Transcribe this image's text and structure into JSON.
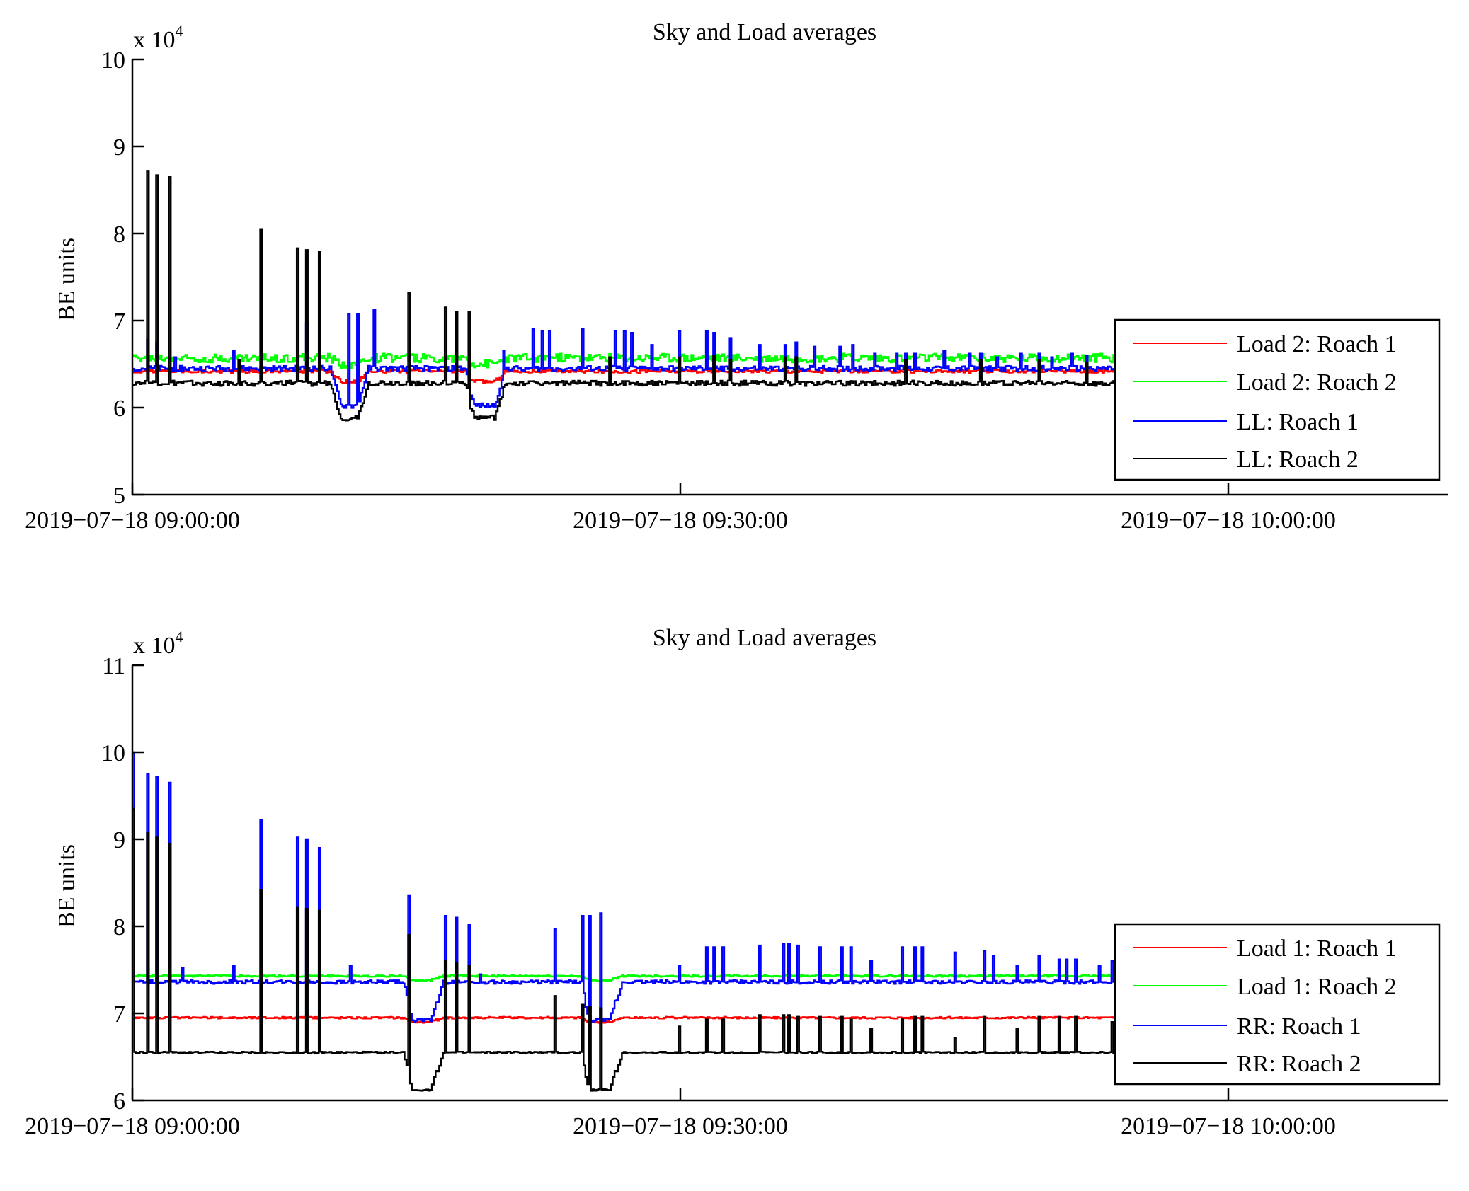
{
  "chart_data": [
    {
      "type": "line",
      "title": "Sky and Load averages",
      "ylabel": "BE units",
      "y_multiplier_label": "x 10",
      "y_multiplier_exponent": "4",
      "ylim": [
        5,
        10
      ],
      "yticks": [
        5,
        6,
        7,
        8,
        9,
        10
      ],
      "ytick_labels": [
        "5",
        "6",
        "7",
        "8",
        "9",
        "10"
      ],
      "xlim_minutes": [
        0,
        71
      ],
      "xticks_minutes": [
        0,
        30,
        60
      ],
      "xtick_labels": [
        "2019−07−18 09:00:00",
        "2019−07−18 09:30:00",
        "2019−07−18 10:00:00"
      ],
      "grid": false,
      "legend_position": "bottom-right",
      "data_end_minute": 54,
      "dips": [
        {
          "start": 10.8,
          "bottom_start": 11.4,
          "bottom_end": 12.3,
          "end": 12.9
        },
        {
          "start": 18.2,
          "bottom_start": 18.7,
          "bottom_end": 19.8,
          "end": 20.4
        }
      ],
      "series": [
        {
          "name": "Load 2: Roach 1",
          "color": "#ff0000",
          "baseline": 6.42,
          "dip_bottom": 6.3,
          "noise": 0.02,
          "spikes": []
        },
        {
          "name": "Load 2: Roach 2",
          "color": "#00ff00",
          "baseline": 6.57,
          "dip_bottom": 6.5,
          "noise": 0.05,
          "spikes": []
        },
        {
          "name": "LL: Roach 1",
          "color": "#0000ff",
          "baseline": 6.45,
          "dip_bottom": 6.02,
          "noise": 0.03,
          "spikes": [
            [
              0.8,
              6.78
            ],
            [
              1.3,
              6.75
            ],
            [
              2.3,
              6.58
            ],
            [
              5.5,
              6.65
            ],
            [
              9.5,
              6.97
            ],
            [
              11.8,
              7.08
            ],
            [
              12.3,
              7.08
            ],
            [
              13.2,
              7.12
            ],
            [
              20.3,
              6.65
            ],
            [
              21.9,
              6.9
            ],
            [
              22.4,
              6.88
            ],
            [
              22.8,
              6.88
            ],
            [
              24.6,
              6.9
            ],
            [
              26.4,
              6.88
            ],
            [
              26.9,
              6.88
            ],
            [
              27.3,
              6.86
            ],
            [
              28.4,
              6.72
            ],
            [
              29.9,
              6.88
            ],
            [
              31.4,
              6.88
            ],
            [
              31.8,
              6.86
            ],
            [
              32.7,
              6.8
            ],
            [
              34.3,
              6.72
            ],
            [
              35.7,
              6.72
            ],
            [
              36.3,
              6.75
            ],
            [
              37.3,
              6.7
            ],
            [
              38.7,
              6.7
            ],
            [
              39.4,
              6.72
            ],
            [
              40.6,
              6.62
            ],
            [
              41.8,
              6.62
            ],
            [
              42.3,
              6.62
            ],
            [
              42.8,
              6.62
            ],
            [
              44.4,
              6.65
            ],
            [
              45.8,
              6.62
            ],
            [
              46.4,
              6.62
            ],
            [
              47.3,
              6.58
            ],
            [
              48.6,
              6.62
            ],
            [
              49.6,
              6.62
            ],
            [
              50.3,
              6.58
            ],
            [
              51.4,
              6.62
            ],
            [
              52.2,
              6.6
            ]
          ]
        },
        {
          "name": "LL: Roach 2",
          "color": "#000000",
          "baseline": 6.28,
          "dip_bottom": 5.88,
          "noise": 0.03,
          "spikes": [
            [
              0.8,
              8.72
            ],
            [
              1.3,
              8.67
            ],
            [
              2.0,
              8.65
            ],
            [
              7.0,
              8.05
            ],
            [
              9.0,
              7.83
            ],
            [
              9.5,
              7.81
            ],
            [
              10.2,
              7.79
            ],
            [
              5.8,
              6.55
            ],
            [
              15.1,
              7.32
            ],
            [
              17.1,
              7.15
            ],
            [
              17.7,
              7.1
            ],
            [
              18.4,
              7.1
            ],
            [
              26.1,
              6.58
            ],
            [
              29.9,
              6.58
            ],
            [
              31.8,
              6.6
            ],
            [
              32.7,
              6.55
            ],
            [
              35.7,
              6.58
            ],
            [
              36.3,
              6.58
            ],
            [
              42.3,
              6.55
            ],
            [
              46.4,
              6.55
            ],
            [
              49.6,
              6.55
            ],
            [
              52.2,
              6.52
            ]
          ]
        }
      ]
    },
    {
      "type": "line",
      "title": "Sky and Load averages",
      "ylabel": "BE units",
      "y_multiplier_label": "x 10",
      "y_multiplier_exponent": "4",
      "ylim": [
        6,
        11
      ],
      "yticks": [
        6,
        7,
        8,
        9,
        10,
        11
      ],
      "ytick_labels": [
        "6",
        "7",
        "8",
        "9",
        "10",
        "11"
      ],
      "xlim_minutes": [
        0,
        71
      ],
      "xticks_minutes": [
        0,
        30,
        60
      ],
      "xtick_labels": [
        "2019−07−18 09:00:00",
        "2019−07−18 09:30:00",
        "2019−07−18 10:00:00"
      ],
      "grid": false,
      "legend_position": "bottom-right",
      "data_end_minute": 54,
      "dips": [
        {
          "start": 14.8,
          "bottom_start": 15.3,
          "bottom_end": 16.3,
          "end": 17.0
        },
        {
          "start": 24.5,
          "bottom_start": 25.0,
          "bottom_end": 26.1,
          "end": 26.8
        }
      ],
      "series": [
        {
          "name": "Load 1: Roach 1",
          "color": "#ff0000",
          "baseline": 6.95,
          "dip_bottom": 6.9,
          "noise": 0.01,
          "spikes": []
        },
        {
          "name": "Load 1: Roach 2",
          "color": "#00ff00",
          "baseline": 7.43,
          "dip_bottom": 7.38,
          "noise": 0.01,
          "spikes": []
        },
        {
          "name": "RR: Roach 1",
          "color": "#0000ff",
          "baseline": 7.36,
          "dip_bottom": 6.92,
          "noise": 0.02,
          "spikes": [
            [
              0.0,
              10.0
            ],
            [
              0.8,
              9.75
            ],
            [
              1.3,
              9.72
            ],
            [
              2.0,
              9.65
            ],
            [
              7.0,
              9.22
            ],
            [
              9.0,
              9.02
            ],
            [
              9.5,
              9.0
            ],
            [
              10.2,
              8.9
            ],
            [
              15.1,
              8.35
            ],
            [
              17.1,
              8.12
            ],
            [
              17.7,
              8.1
            ],
            [
              18.4,
              8.02
            ],
            [
              2.7,
              7.52
            ],
            [
              5.5,
              7.55
            ],
            [
              11.9,
              7.55
            ],
            [
              19.0,
              7.45
            ],
            [
              23.1,
              7.97
            ],
            [
              24.6,
              8.12
            ],
            [
              25.0,
              8.12
            ],
            [
              25.6,
              8.15
            ],
            [
              29.9,
              7.55
            ],
            [
              31.4,
              7.76
            ],
            [
              31.8,
              7.76
            ],
            [
              32.3,
              7.76
            ],
            [
              34.3,
              7.78
            ],
            [
              35.6,
              7.8
            ],
            [
              35.9,
              7.8
            ],
            [
              36.4,
              7.78
            ],
            [
              37.6,
              7.76
            ],
            [
              38.8,
              7.76
            ],
            [
              39.3,
              7.76
            ],
            [
              40.4,
              7.6
            ],
            [
              42.1,
              7.76
            ],
            [
              42.8,
              7.76
            ],
            [
              43.2,
              7.76
            ],
            [
              45.0,
              7.7
            ],
            [
              46.6,
              7.72
            ],
            [
              47.1,
              7.66
            ],
            [
              48.4,
              7.55
            ],
            [
              49.6,
              7.66
            ],
            [
              50.7,
              7.62
            ],
            [
              51.1,
              7.62
            ],
            [
              51.6,
              7.62
            ],
            [
              52.9,
              7.55
            ],
            [
              53.6,
              7.6
            ]
          ]
        },
        {
          "name": "RR: Roach 2",
          "color": "#000000",
          "baseline": 6.55,
          "dip_bottom": 6.12,
          "noise": 0.01,
          "spikes": [
            [
              0.0,
              9.35
            ],
            [
              0.8,
              9.08
            ],
            [
              1.3,
              9.02
            ],
            [
              2.0,
              8.95
            ],
            [
              7.0,
              8.42
            ],
            [
              9.0,
              8.22
            ],
            [
              9.5,
              8.2
            ],
            [
              10.2,
              8.18
            ],
            [
              15.1,
              7.9
            ],
            [
              17.1,
              7.6
            ],
            [
              17.7,
              7.58
            ],
            [
              18.4,
              7.55
            ],
            [
              23.1,
              7.2
            ],
            [
              24.6,
              7.1
            ],
            [
              25.0,
              7.08
            ],
            [
              25.6,
              7.06
            ],
            [
              29.9,
              6.85
            ],
            [
              31.4,
              6.93
            ],
            [
              32.3,
              6.93
            ],
            [
              34.3,
              6.98
            ],
            [
              35.6,
              6.98
            ],
            [
              35.9,
              6.98
            ],
            [
              36.4,
              6.96
            ],
            [
              37.6,
              6.96
            ],
            [
              38.8,
              6.96
            ],
            [
              39.3,
              6.93
            ],
            [
              40.4,
              6.82
            ],
            [
              42.1,
              6.93
            ],
            [
              42.8,
              6.96
            ],
            [
              43.2,
              6.96
            ],
            [
              45.0,
              6.72
            ],
            [
              46.6,
              6.96
            ],
            [
              48.4,
              6.82
            ],
            [
              49.6,
              6.96
            ],
            [
              50.7,
              6.96
            ],
            [
              51.6,
              6.96
            ],
            [
              53.6,
              6.9
            ]
          ]
        }
      ]
    }
  ]
}
